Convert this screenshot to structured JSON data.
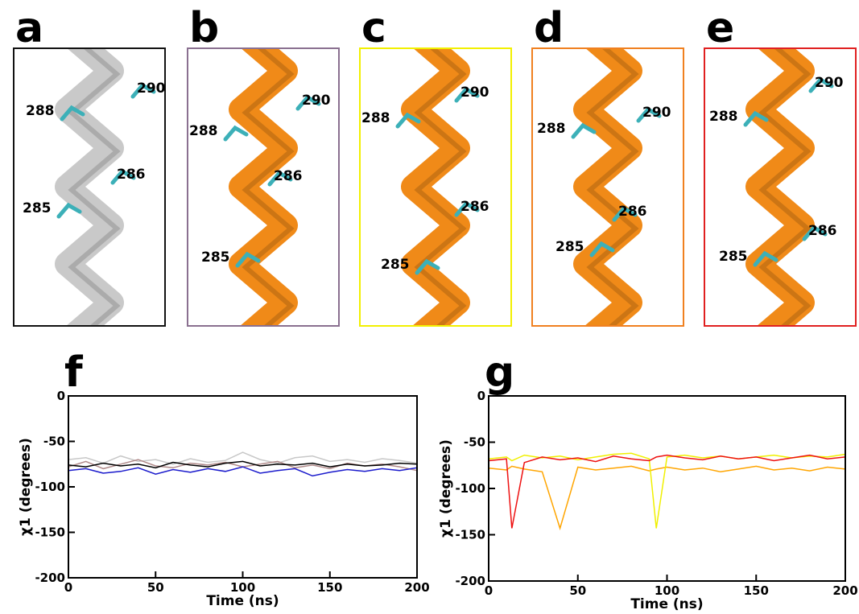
{
  "panels": [
    {
      "letter": "a",
      "labels": [
        "290",
        "288",
        "286",
        "285"
      ],
      "color": "#111111",
      "helix": "#c9c9c9"
    },
    {
      "letter": "b",
      "labels": [
        "290",
        "288",
        "286",
        "285"
      ],
      "color": "#8a7090",
      "helix": "#f08a18"
    },
    {
      "letter": "c",
      "labels": [
        "290",
        "288",
        "286",
        "285"
      ],
      "color": "#f2f000",
      "helix": "#f08a18"
    },
    {
      "letter": "d",
      "labels": [
        "290",
        "288",
        "286",
        "285"
      ],
      "color": "#f08020",
      "helix": "#f08a18"
    },
    {
      "letter": "e",
      "labels": [
        "290",
        "288",
        "286",
        "285"
      ],
      "color": "#e02020",
      "helix": "#f08a18"
    }
  ],
  "chart_data": [
    {
      "type": "line",
      "panel_label": "f",
      "xlabel": "Time (ns)",
      "ylabel": "χ1 (degrees)",
      "x": [
        0,
        10,
        20,
        30,
        40,
        50,
        60,
        70,
        80,
        90,
        100,
        110,
        120,
        130,
        140,
        150,
        160,
        170,
        180,
        190,
        200
      ],
      "xlim": [
        0,
        200
      ],
      "xticks": [
        0,
        50,
        100,
        150,
        200
      ],
      "ylim": [
        -200,
        0
      ],
      "yticks": [
        0,
        -50,
        -100,
        -150,
        -200
      ],
      "series": [
        {
          "color": "#c8c8c8",
          "values": [
            -70,
            -68,
            -74,
            -66,
            -72,
            -70,
            -75,
            -69,
            -73,
            -71,
            -62,
            -70,
            -74,
            -68,
            -66,
            -72,
            -70,
            -73,
            -69,
            -71,
            -74
          ]
        },
        {
          "color": "#b08a8a",
          "values": [
            -78,
            -72,
            -80,
            -75,
            -70,
            -77,
            -79,
            -74,
            -76,
            -73,
            -78,
            -75,
            -72,
            -79,
            -76,
            -80,
            -74,
            -77,
            -75,
            -78,
            -82
          ]
        },
        {
          "color": "#1a1acc",
          "values": [
            -82,
            -80,
            -85,
            -83,
            -79,
            -86,
            -81,
            -84,
            -80,
            -83,
            -78,
            -85,
            -82,
            -80,
            -88,
            -84,
            -81,
            -83,
            -80,
            -82,
            -79
          ]
        },
        {
          "color": "#000000",
          "values": [
            -76,
            -78,
            -74,
            -77,
            -75,
            -79,
            -73,
            -76,
            -78,
            -74,
            -72,
            -77,
            -75,
            -76,
            -74,
            -78,
            -75,
            -77,
            -76,
            -74,
            -75
          ]
        }
      ]
    },
    {
      "type": "line",
      "panel_label": "g",
      "xlabel": "Time (ns)",
      "ylabel": "χ1 (degrees)",
      "x": [
        0,
        10,
        13,
        20,
        30,
        40,
        50,
        60,
        70,
        80,
        90,
        94,
        100,
        110,
        120,
        130,
        140,
        150,
        160,
        170,
        180,
        190,
        200
      ],
      "xlim": [
        0,
        200
      ],
      "xticks": [
        0,
        50,
        100,
        150,
        200
      ],
      "ylim": [
        -200,
        0
      ],
      "yticks": [
        0,
        -50,
        -100,
        -150,
        -200
      ],
      "series": [
        {
          "color": "#ffa500",
          "values": [
            -78,
            -80,
            -76,
            -79,
            -82,
            -143,
            -77,
            -80,
            -78,
            -76,
            -81,
            -79,
            -77,
            -80,
            -78,
            -82,
            -79,
            -76,
            -80,
            -78,
            -81,
            -77,
            -79
          ]
        },
        {
          "color": "#f0f000",
          "values": [
            -68,
            -66,
            -70,
            -64,
            -67,
            -65,
            -69,
            -66,
            -63,
            -62,
            -68,
            -143,
            -66,
            -64,
            -67,
            -65,
            -68,
            -66,
            -64,
            -67,
            -65,
            -66,
            -63
          ]
        },
        {
          "color": "#ee1111",
          "values": [
            -70,
            -68,
            -143,
            -72,
            -66,
            -69,
            -67,
            -71,
            -65,
            -68,
            -70,
            -66,
            -64,
            -67,
            -69,
            -65,
            -68,
            -66,
            -70,
            -67,
            -64,
            -68,
            -66
          ]
        }
      ]
    }
  ]
}
